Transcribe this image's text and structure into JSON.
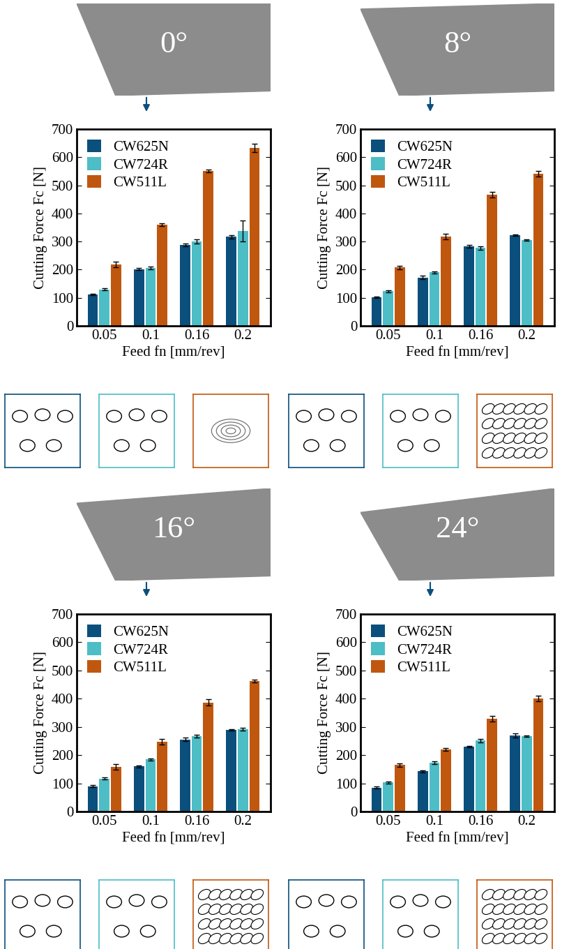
{
  "chart_data": [
    {
      "type": "bar",
      "title": "0°",
      "x_label": "Feed fn [mm/rev]",
      "y_label": "Cutting Force Fc [N]",
      "categories": [
        "0.05",
        "0.1",
        "0.16",
        "0.2"
      ],
      "series": [
        {
          "name": "CW625N",
          "color": "#0b4f7c",
          "values": [
            112,
            202,
            288,
            317
          ],
          "errors": [
            3,
            4,
            5,
            6
          ]
        },
        {
          "name": "CW724R",
          "color": "#4dbdc6",
          "values": [
            130,
            205,
            300,
            338
          ],
          "errors": [
            4,
            5,
            7,
            37
          ]
        },
        {
          "name": "CW511L",
          "color": "#c0570f",
          "values": [
            218,
            360,
            550,
            632
          ],
          "errors": [
            10,
            4,
            5,
            15
          ]
        }
      ],
      "ylim": [
        0,
        700
      ],
      "yticks": [
        0,
        100,
        200,
        300,
        400,
        500,
        600,
        700
      ],
      "legend": "upper left"
    },
    {
      "type": "bar",
      "title": "8°",
      "x_label": "Feed fn [mm/rev]",
      "y_label": "Cutting Force Fc [N]",
      "categories": [
        "0.05",
        "0.1",
        "0.16",
        "0.2"
      ],
      "series": [
        {
          "name": "CW625N",
          "color": "#0b4f7c",
          "values": [
            102,
            172,
            283,
            322
          ],
          "errors": [
            2,
            6,
            5,
            3
          ]
        },
        {
          "name": "CW724R",
          "color": "#4dbdc6",
          "values": [
            123,
            190,
            277,
            305
          ],
          "errors": [
            4,
            4,
            6,
            3
          ]
        },
        {
          "name": "CW511L",
          "color": "#c0570f",
          "values": [
            208,
            318,
            467,
            540
          ],
          "errors": [
            6,
            10,
            10,
            10
          ]
        }
      ],
      "ylim": [
        0,
        700
      ],
      "yticks": [
        0,
        100,
        200,
        300,
        400,
        500,
        600,
        700
      ],
      "legend": "upper left"
    },
    {
      "type": "bar",
      "title": "16°",
      "x_label": "Feed fn [mm/rev]",
      "y_label": "Cutting Force Fc [N]",
      "categories": [
        "0.05",
        "0.1",
        "0.16",
        "0.2"
      ],
      "series": [
        {
          "name": "CW625N",
          "color": "#0b4f7c",
          "values": [
            90,
            160,
            256,
            290
          ],
          "errors": [
            3,
            4,
            7,
            3
          ]
        },
        {
          "name": "CW724R",
          "color": "#4dbdc6",
          "values": [
            117,
            185,
            268,
            293
          ],
          "errors": [
            3,
            4,
            5,
            5
          ]
        },
        {
          "name": "CW511L",
          "color": "#c0570f",
          "values": [
            158,
            248,
            387,
            462
          ],
          "errors": [
            10,
            10,
            10,
            5
          ]
        }
      ],
      "ylim": [
        0,
        700
      ],
      "yticks": [
        0,
        100,
        200,
        300,
        400,
        500,
        600,
        700
      ],
      "legend": "upper left"
    },
    {
      "type": "bar",
      "title": "24°",
      "x_label": "Feed fn [mm/rev]",
      "y_label": "Cutting Force Fc [N]",
      "categories": [
        "0.05",
        "0.1",
        "0.16",
        "0.2"
      ],
      "series": [
        {
          "name": "CW625N",
          "color": "#0b4f7c",
          "values": [
            85,
            143,
            230,
            270
          ],
          "errors": [
            3,
            4,
            3,
            7
          ]
        },
        {
          "name": "CW724R",
          "color": "#4dbdc6",
          "values": [
            103,
            173,
            252,
            267
          ],
          "errors": [
            3,
            6,
            6,
            3
          ]
        },
        {
          "name": "CW511L",
          "color": "#c0570f",
          "values": [
            165,
            220,
            330,
            400
          ],
          "errors": [
            6,
            5,
            10,
            10
          ]
        }
      ],
      "ylim": [
        0,
        700
      ],
      "yticks": [
        0,
        100,
        200,
        300,
        400,
        500,
        600,
        700
      ],
      "legend": "upper left"
    }
  ]
}
